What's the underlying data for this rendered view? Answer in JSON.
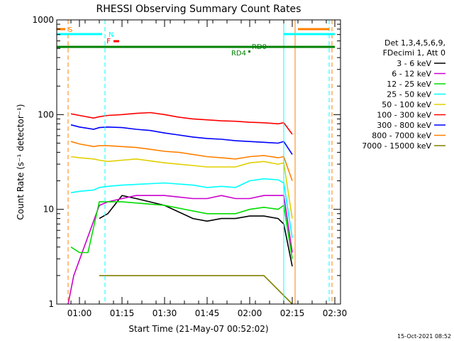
{
  "chart_data": {
    "type": "line",
    "title": "RHESSI Observing Summary Count Rates",
    "xlabel": "Start Time (21-May-07 00:52:02)",
    "ylabel": "Count Rate (s⁻¹ detector⁻¹)",
    "yscale": "log",
    "ylim": [
      1,
      1000
    ],
    "xlim": [
      "00:52",
      "02:32"
    ],
    "x_ticks": [
      "01:00",
      "01:15",
      "01:30",
      "01:45",
      "02:00",
      "02:15",
      "02:30"
    ],
    "y_ticks": [
      "1",
      "10",
      "100",
      "1000"
    ],
    "grid": false,
    "legend_placement": "right",
    "legend_title": [
      "Det 1,3,4,5,6,9,",
      "FDecimi 1, Att 0"
    ],
    "series": [
      {
        "name": "3 - 6 keV",
        "color": "#000000",
        "x": [
          "01:07",
          "01:10",
          "01:15",
          "01:20",
          "01:30",
          "01:40",
          "01:45",
          "01:50",
          "01:55",
          "02:00",
          "02:05",
          "02:10",
          "02:12",
          "02:15"
        ],
        "values": [
          8,
          9,
          14,
          13,
          11,
          8,
          7.5,
          8,
          8,
          8.5,
          8.5,
          8,
          7,
          2.5
        ]
      },
      {
        "name": "6 - 12 keV",
        "color": "#cc00cc",
        "x": [
          "00:56",
          "00:58",
          "01:07",
          "01:10",
          "01:15",
          "01:20",
          "01:30",
          "01:40",
          "01:45",
          "01:50",
          "01:55",
          "02:00",
          "02:05",
          "02:10",
          "02:12",
          "02:15"
        ],
        "values": [
          1,
          2,
          11,
          12,
          13,
          14,
          14,
          13,
          13,
          14,
          13,
          13,
          14,
          14,
          14,
          3.5
        ]
      },
      {
        "name": "12 - 25 keV",
        "color": "#00dd00",
        "x": [
          "00:57",
          "01:00",
          "01:03",
          "01:07",
          "01:10",
          "01:15",
          "01:30",
          "01:45",
          "01:50",
          "01:55",
          "02:00",
          "02:05",
          "02:10",
          "02:12",
          "02:15"
        ],
        "values": [
          4,
          3.5,
          3.5,
          12,
          12,
          12,
          11,
          9,
          9,
          9,
          10,
          10.5,
          10,
          11,
          3
        ]
      },
      {
        "name": "25 - 50 keV",
        "color": "#00ffff",
        "x": [
          "00:57",
          "01:00",
          "01:05",
          "01:07",
          "01:10",
          "01:15",
          "01:30",
          "01:40",
          "01:45",
          "01:50",
          "01:55",
          "02:00",
          "02:05",
          "02:10",
          "02:12",
          "02:15"
        ],
        "values": [
          15,
          15.5,
          16,
          17,
          17.5,
          18,
          19,
          18,
          17,
          17.5,
          17,
          20,
          21,
          20.5,
          19,
          5
        ]
      },
      {
        "name": "50 - 100 keV",
        "color": "#e0d000",
        "x": [
          "00:57",
          "01:00",
          "01:05",
          "01:07",
          "01:10",
          "01:15",
          "01:20",
          "01:30",
          "01:40",
          "01:45",
          "01:50",
          "01:55",
          "02:00",
          "02:05",
          "02:10",
          "02:12",
          "02:15"
        ],
        "values": [
          36,
          35,
          34,
          33,
          32,
          33,
          34,
          31,
          29,
          28,
          28,
          28,
          31,
          32,
          30,
          31,
          8
        ]
      },
      {
        "name": "100 - 300 keV",
        "color": "#ff0000",
        "x": [
          "00:57",
          "01:00",
          "01:05",
          "01:07",
          "01:10",
          "01:15",
          "01:20",
          "01:25",
          "01:30",
          "01:35",
          "01:40",
          "01:45",
          "01:50",
          "01:55",
          "02:00",
          "02:05",
          "02:10",
          "02:12",
          "02:15"
        ],
        "values": [
          102,
          98,
          92,
          95,
          98,
          100,
          103,
          105,
          100,
          94,
          90,
          88,
          86,
          85,
          83,
          82,
          80,
          82,
          62
        ]
      },
      {
        "name": "300 - 800 keV",
        "color": "#0000ff",
        "x": [
          "00:57",
          "01:00",
          "01:05",
          "01:07",
          "01:10",
          "01:15",
          "01:20",
          "01:25",
          "01:30",
          "01:35",
          "01:40",
          "01:45",
          "01:50",
          "01:55",
          "02:00",
          "02:05",
          "02:10",
          "02:12",
          "02:15"
        ],
        "values": [
          78,
          74,
          70,
          73,
          74,
          73,
          70,
          68,
          64,
          61,
          58,
          56,
          55,
          53,
          52,
          51,
          50,
          52,
          38
        ]
      },
      {
        "name": "800 - 7000 keV",
        "color": "#ff8000",
        "x": [
          "00:57",
          "01:00",
          "01:05",
          "01:07",
          "01:10",
          "01:15",
          "01:20",
          "01:25",
          "01:30",
          "01:35",
          "01:40",
          "01:45",
          "01:50",
          "01:55",
          "02:00",
          "02:05",
          "02:10",
          "02:12",
          "02:15"
        ],
        "values": [
          52,
          49,
          46,
          47,
          47,
          46,
          45,
          43,
          41,
          40,
          38,
          36,
          35,
          34,
          36,
          37,
          35,
          36,
          20
        ]
      },
      {
        "name": "7000 - 15000 keV",
        "color": "#808000",
        "x": [
          "01:07",
          "01:15",
          "01:25",
          "01:35",
          "01:45",
          "01:55",
          "02:05",
          "02:15"
        ],
        "values": [
          2,
          2,
          2,
          2,
          2,
          2,
          2,
          1
        ]
      }
    ],
    "annotations": [
      {
        "text": "S",
        "color": "#ff8000"
      },
      {
        "text": "N",
        "color": "#00ffff"
      },
      {
        "text": "F",
        "color": "#ff0000"
      },
      {
        "text": "RD4",
        "color": "#008000"
      },
      {
        "text": "RD0",
        "color": "#008000"
      }
    ],
    "timestamp": "15-Oct-2021 08:52"
  }
}
